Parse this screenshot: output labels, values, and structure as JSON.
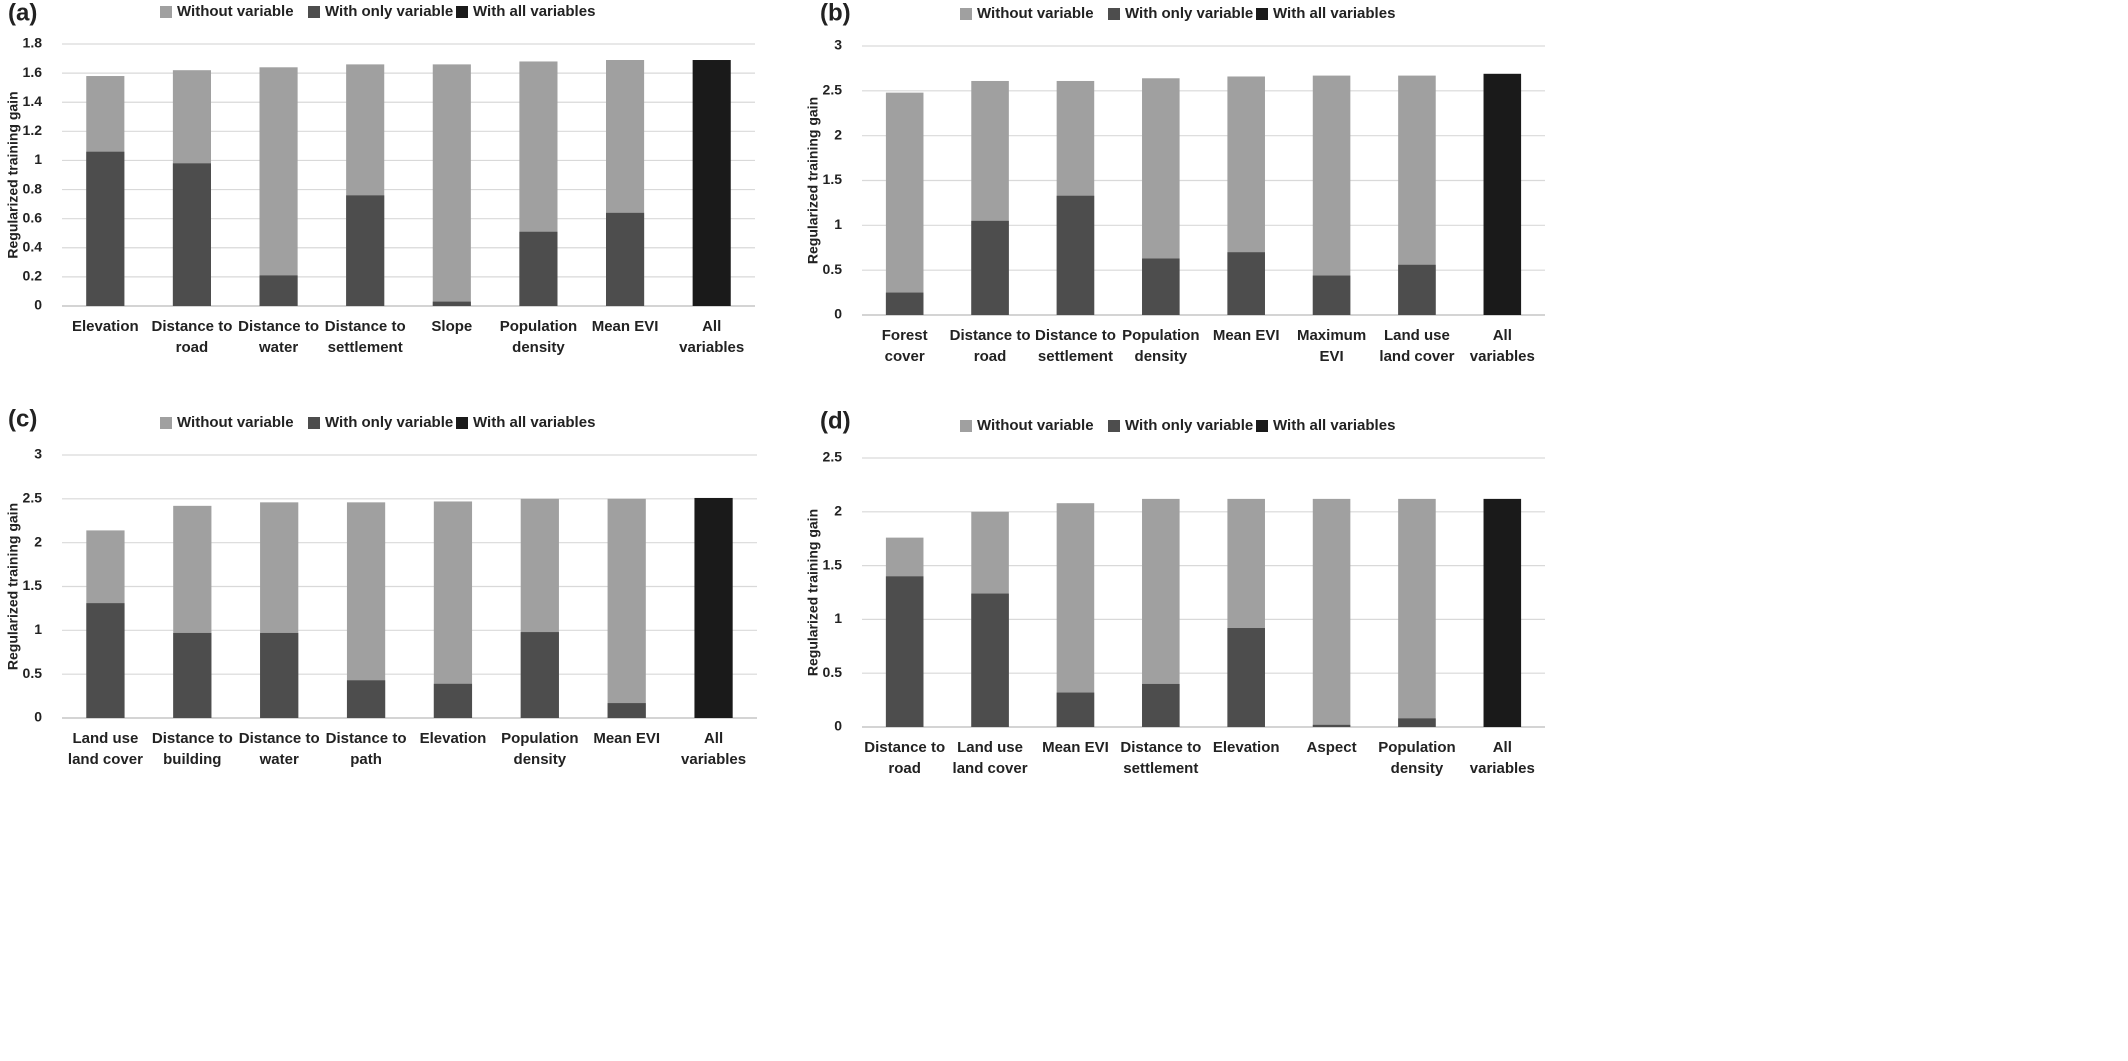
{
  "chart_data": [
    {
      "type": "bar",
      "barmode": "overlay",
      "label": "(a)",
      "ylabel": "Regularized training gain",
      "legend": "top",
      "grid": true,
      "categories": [
        "Elevation",
        "Distance to road",
        "Distance to water",
        "Distance to settlement",
        "Slope",
        "Population density",
        "Mean EVI",
        "All variables"
      ],
      "series": [
        {
          "name": "Without variable",
          "color": "#a0a0a0",
          "values": [
            1.58,
            1.62,
            1.64,
            1.66,
            1.66,
            1.68,
            1.69,
            null
          ]
        },
        {
          "name": "With only variable",
          "color": "#4d4d4d",
          "values": [
            1.06,
            0.98,
            0.21,
            0.76,
            0.03,
            0.51,
            0.64,
            null
          ]
        },
        {
          "name": "With all variables",
          "color": "#1a1a1a",
          "values": [
            null,
            null,
            null,
            null,
            null,
            null,
            null,
            1.69
          ]
        }
      ],
      "ylim": [
        0,
        1.8
      ],
      "yticks": [
        0,
        0.2,
        0.4,
        0.6,
        0.8,
        1,
        1.2,
        1.4,
        1.6,
        1.8
      ]
    },
    {
      "type": "bar",
      "barmode": "overlay",
      "label": "(b)",
      "ylabel": "Regularized training gain",
      "legend": "top",
      "grid": true,
      "categories": [
        "Forest cover",
        "Distance to road",
        "Distance to settlement",
        "Population density",
        "Mean EVI",
        "Maximum EVI",
        "Land use land cover",
        "All variables"
      ],
      "series": [
        {
          "name": "Without variable",
          "color": "#a0a0a0",
          "values": [
            2.48,
            2.61,
            2.61,
            2.64,
            2.66,
            2.67,
            2.67,
            null
          ]
        },
        {
          "name": "With only variable",
          "color": "#4d4d4d",
          "values": [
            0.25,
            1.05,
            1.33,
            0.63,
            0.7,
            0.44,
            0.56,
            null
          ]
        },
        {
          "name": "With all variables",
          "color": "#1a1a1a",
          "values": [
            null,
            null,
            null,
            null,
            null,
            null,
            null,
            2.69
          ]
        }
      ],
      "ylim": [
        0,
        3
      ],
      "yticks": [
        0,
        0.5,
        1,
        1.5,
        2,
        2.5,
        3
      ]
    },
    {
      "type": "bar",
      "barmode": "overlay",
      "label": "(c)",
      "ylabel": "Regularized training gain",
      "legend": "top",
      "grid": true,
      "categories": [
        "Land use land cover",
        "Distance to building",
        "Distance to water",
        "Distance to path",
        "Elevation",
        "Population density",
        "Mean EVI",
        "All variables"
      ],
      "series": [
        {
          "name": "Without variable",
          "color": "#a0a0a0",
          "values": [
            2.14,
            2.42,
            2.46,
            2.46,
            2.47,
            2.5,
            2.5,
            null
          ]
        },
        {
          "name": "With only variable",
          "color": "#4d4d4d",
          "values": [
            1.31,
            0.97,
            0.97,
            0.43,
            0.39,
            0.98,
            0.17,
            null
          ]
        },
        {
          "name": "With all variables",
          "color": "#1a1a1a",
          "values": [
            null,
            null,
            null,
            null,
            null,
            null,
            null,
            2.51
          ]
        }
      ],
      "ylim": [
        0,
        3
      ],
      "yticks": [
        0,
        0.5,
        1,
        1.5,
        2,
        2.5,
        3
      ]
    },
    {
      "type": "bar",
      "barmode": "overlay",
      "label": "(d)",
      "ylabel": "Regularized training gain",
      "legend": "top",
      "grid": true,
      "categories": [
        "Distance to road",
        "Land use land cover",
        "Mean EVI",
        "Distance to settlement",
        "Elevation",
        "Aspect",
        "Population density",
        "All variables"
      ],
      "series": [
        {
          "name": "Without variable",
          "color": "#a0a0a0",
          "values": [
            1.76,
            2.0,
            2.08,
            2.12,
            2.12,
            2.12,
            2.12,
            null
          ]
        },
        {
          "name": "With only variable",
          "color": "#4d4d4d",
          "values": [
            1.4,
            1.24,
            0.32,
            0.4,
            0.92,
            0.02,
            0.08,
            null
          ]
        },
        {
          "name": "With all variables",
          "color": "#1a1a1a",
          "values": [
            null,
            null,
            null,
            null,
            null,
            null,
            null,
            2.12
          ]
        }
      ],
      "ylim": [
        0,
        2.5
      ],
      "yticks": [
        0,
        0.5,
        1,
        1.5,
        2,
        2.5
      ]
    }
  ]
}
